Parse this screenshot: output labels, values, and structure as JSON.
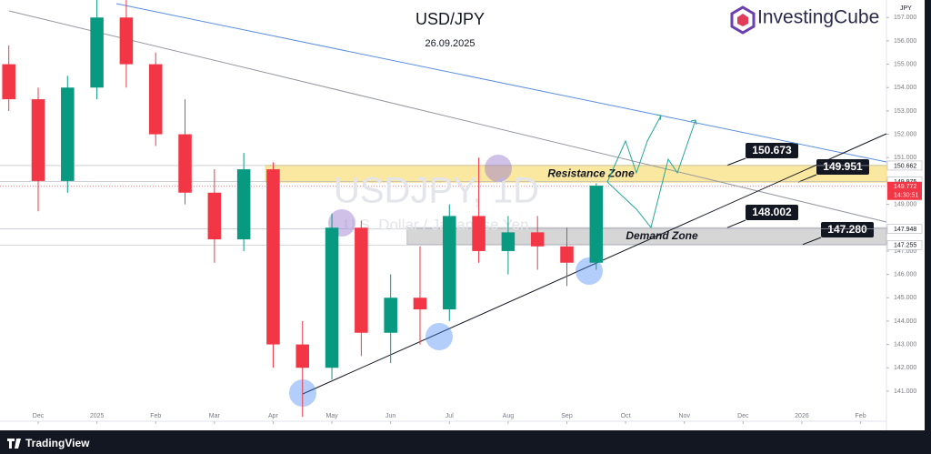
{
  "header": {
    "title": "USD/JPY",
    "date": "26.09.2025",
    "logo": "InvestingCube"
  },
  "chart_data": {
    "type": "candlestick",
    "watermark": "USDJPY, 1D",
    "watermark_subtitle": "U.S. Dollar / Japanese Yen",
    "y_axis_unit": "JPY",
    "x": [
      -0.5,
      0,
      0.5,
      1,
      1.5,
      2,
      2.5,
      3,
      3.5,
      4,
      4.5,
      5,
      5.5,
      6,
      6.5,
      7,
      7.5,
      8,
      8.5,
      9,
      9.5
    ],
    "open": [
      155.0,
      153.5,
      150.0,
      154.0,
      157.0,
      155.0,
      152.0,
      149.5,
      147.5,
      150.5,
      143.0,
      142.0,
      148.0,
      143.5,
      145.0,
      144.5,
      148.5,
      147.0,
      147.8,
      147.2,
      146.5
    ],
    "high": [
      155.8,
      154.0,
      154.5,
      158.0,
      158.0,
      155.5,
      153.5,
      150.5,
      151.2,
      150.8,
      144.0,
      148.6,
      148.3,
      146.0,
      147.2,
      149.0,
      151.0,
      148.5,
      148.5,
      148.0,
      149.9
    ],
    "low": [
      153.0,
      148.7,
      149.5,
      153.5,
      154.0,
      151.5,
      149.0,
      146.5,
      147.0,
      142.0,
      139.9,
      141.5,
      142.5,
      142.2,
      143.0,
      144.0,
      146.5,
      146.0,
      146.2,
      145.5,
      146.2
    ],
    "close": [
      153.5,
      150.0,
      154.0,
      157.0,
      155.0,
      152.0,
      149.5,
      147.5,
      150.5,
      143.0,
      142.0,
      148.0,
      143.5,
      145.0,
      144.5,
      148.5,
      147.0,
      147.8,
      147.2,
      146.5,
      149.8
    ],
    "up_color": "#089981",
    "down_color": "#f23645",
    "xlim": [
      -0.65,
      14.44
    ],
    "xticks": [
      {
        "value": 0,
        "label": "Dec"
      },
      {
        "value": 1,
        "label": "2025"
      },
      {
        "value": 2,
        "label": "Feb"
      },
      {
        "value": 3,
        "label": "Mar"
      },
      {
        "value": 4,
        "label": "Apr"
      },
      {
        "value": 5,
        "label": "May"
      },
      {
        "value": 6,
        "label": "Jun"
      },
      {
        "value": 7,
        "label": "Jul"
      },
      {
        "value": 8,
        "label": "Aug"
      },
      {
        "value": 9,
        "label": "Sep"
      },
      {
        "value": 10,
        "label": "Oct"
      },
      {
        "value": 11,
        "label": "Nov"
      },
      {
        "value": 12,
        "label": "Dec"
      },
      {
        "value": 13,
        "label": "2026"
      },
      {
        "value": 14,
        "label": "Feb"
      }
    ],
    "ylim": [
      139.75,
      157.75
    ],
    "yticks": [
      {
        "value": 141,
        "label": "141.000"
      },
      {
        "value": 142,
        "label": "142.000"
      },
      {
        "value": 143,
        "label": "143.000"
      },
      {
        "value": 144,
        "label": "144.000"
      },
      {
        "value": 145,
        "label": "145.000"
      },
      {
        "value": 146,
        "label": "146.000"
      },
      {
        "value": 147,
        "label": "147.000"
      },
      {
        "value": 148,
        "label": "148.000"
      },
      {
        "value": 149,
        "label": "149.000"
      },
      {
        "value": 150,
        "label": "150.000"
      },
      {
        "value": 151,
        "label": "151.000"
      },
      {
        "value": 152,
        "label": "152.000"
      },
      {
        "value": 153,
        "label": "153.000"
      },
      {
        "value": 154,
        "label": "154.000"
      },
      {
        "value": 155,
        "label": "155.000"
      },
      {
        "value": 156,
        "label": "156.000"
      },
      {
        "value": 157,
        "label": "157.000"
      }
    ],
    "zones": [
      {
        "name": "Resistance Zone",
        "start": 3.87,
        "low": 149.951,
        "high": 150.673,
        "color": "#fbe8a0"
      },
      {
        "name": "Demand Zone",
        "start": 6.28,
        "low": {
          "value": 147.28,
          "label": "147.280"
        },
        "high": 148.002,
        "color": "#d6d6d6"
      }
    ],
    "price_tags": [
      150.662,
      149.975,
      147.948,
      147.255
    ],
    "current_price": {
      "value": 149.772,
      "countdown": "14:30:51",
      "color": "#f23645"
    }
  },
  "footer": {
    "brand": "TradingView"
  }
}
